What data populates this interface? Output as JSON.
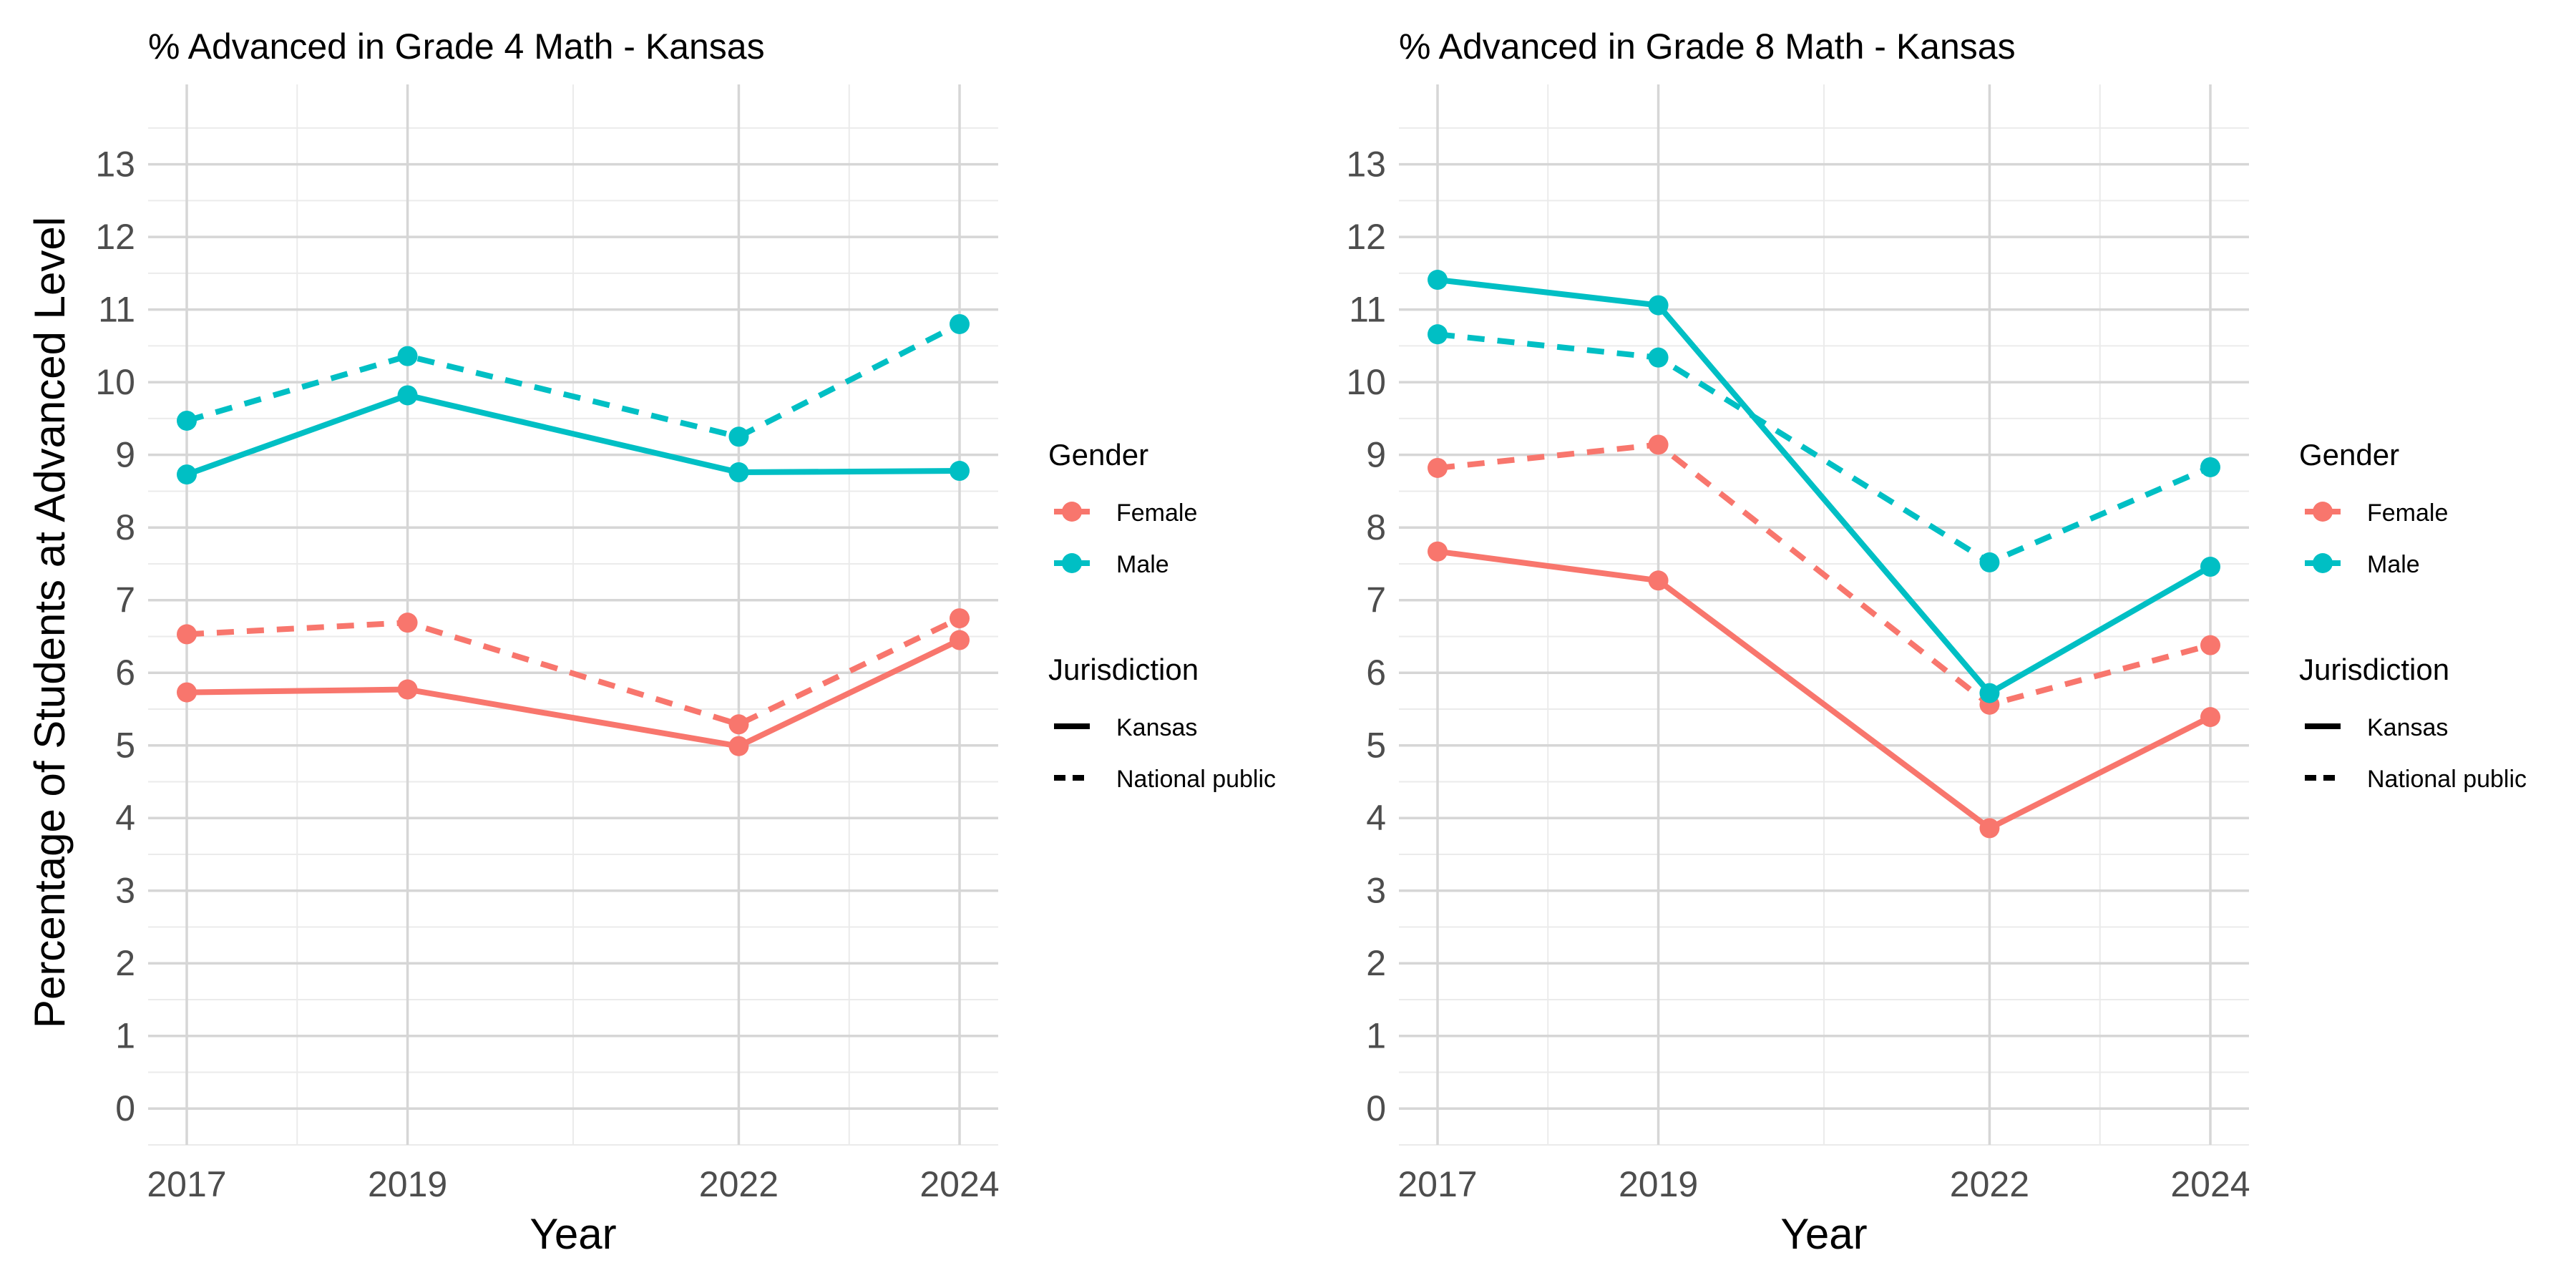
{
  "shared": {
    "ylabel": "Percentage of Students at Advanced Level",
    "legend": {
      "gender_title": "Gender",
      "gender_items": [
        {
          "label": "Female",
          "color": "#F8766D"
        },
        {
          "label": "Male",
          "color": "#00BFC4"
        }
      ],
      "jurisdiction_title": "Jurisdiction",
      "jurisdiction_items": [
        {
          "label": "Kansas",
          "style": "solid"
        },
        {
          "label": "National public",
          "style": "dashed"
        }
      ]
    }
  },
  "chart_data": [
    {
      "type": "line",
      "title": "% Advanced in Grade 4 Math - Kansas",
      "xlabel": "Year",
      "ylabel": "Percentage of Students at Advanced Level",
      "x": [
        2017,
        2019,
        2022,
        2024
      ],
      "xlim": [
        2016.65,
        2024.35
      ],
      "ylim": [
        -0.5,
        14.1
      ],
      "yticks": [
        0,
        1,
        2,
        3,
        4,
        5,
        6,
        7,
        8,
        9,
        10,
        11,
        12,
        13
      ],
      "grid": true,
      "legend_placement": "right",
      "series": [
        {
          "name": "Female",
          "jurisdiction": "Kansas",
          "color": "#F8766D",
          "dash": "solid",
          "values": [
            5.73,
            5.77,
            4.99,
            6.45
          ]
        },
        {
          "name": "Female",
          "jurisdiction": "National public",
          "color": "#F8766D",
          "dash": "dashed",
          "values": [
            6.53,
            6.69,
            5.29,
            6.75
          ]
        },
        {
          "name": "Male",
          "jurisdiction": "Kansas",
          "color": "#00BFC4",
          "dash": "solid",
          "values": [
            8.73,
            9.82,
            8.76,
            8.78
          ]
        },
        {
          "name": "Male",
          "jurisdiction": "National public",
          "color": "#00BFC4",
          "dash": "dashed",
          "values": [
            9.47,
            10.36,
            9.25,
            10.8
          ]
        }
      ]
    },
    {
      "type": "line",
      "title": "% Advanced in Grade 8 Math - Kansas",
      "xlabel": "Year",
      "ylabel": "",
      "x": [
        2017,
        2019,
        2022,
        2024
      ],
      "xlim": [
        2016.65,
        2024.35
      ],
      "ylim": [
        -0.5,
        14.1
      ],
      "yticks": [
        0,
        1,
        2,
        3,
        4,
        5,
        6,
        7,
        8,
        9,
        10,
        11,
        12,
        13
      ],
      "grid": true,
      "legend_placement": "right",
      "series": [
        {
          "name": "Female",
          "jurisdiction": "Kansas",
          "color": "#F8766D",
          "dash": "solid",
          "values": [
            7.67,
            7.27,
            3.86,
            5.39
          ]
        },
        {
          "name": "Female",
          "jurisdiction": "National public",
          "color": "#F8766D",
          "dash": "dashed",
          "values": [
            8.82,
            9.14,
            5.56,
            6.38
          ]
        },
        {
          "name": "Male",
          "jurisdiction": "Kansas",
          "color": "#00BFC4",
          "dash": "solid",
          "values": [
            11.41,
            11.06,
            5.72,
            7.46
          ]
        },
        {
          "name": "Male",
          "jurisdiction": "National public",
          "color": "#00BFC4",
          "dash": "dashed",
          "values": [
            10.66,
            10.34,
            7.52,
            8.83
          ]
        }
      ]
    }
  ]
}
